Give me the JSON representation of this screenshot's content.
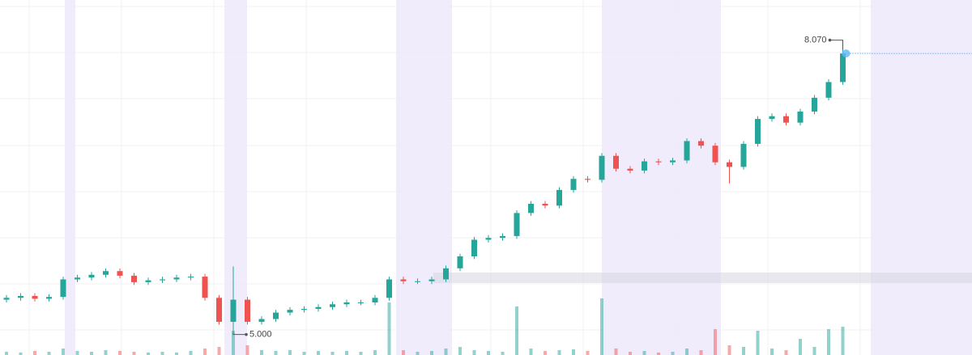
{
  "chart_data": {
    "type": "candlestick",
    "open": [
      5.36,
      5.38,
      5.4,
      5.37,
      5.39,
      5.58,
      5.6,
      5.63,
      5.67,
      5.62,
      5.55,
      5.57,
      5.58,
      5.6,
      5.61,
      5.38,
      5.12,
      5.36,
      5.12,
      5.15,
      5.22,
      5.25,
      5.26,
      5.28,
      5.31,
      5.33,
      5.33,
      5.38,
      5.58,
      5.56,
      5.56,
      5.58,
      5.7,
      5.83,
      6.01,
      6.03,
      6.05,
      6.3,
      6.4,
      6.38,
      6.55,
      6.67,
      6.66,
      6.92,
      6.78,
      6.76,
      6.86,
      6.85,
      6.87,
      7.08,
      7.03,
      6.85,
      6.8,
      7.05,
      7.32,
      7.35,
      7.28,
      7.4,
      7.55,
      7.72
    ],
    "high": [
      5.41,
      5.43,
      5.43,
      5.42,
      5.61,
      5.63,
      5.66,
      5.7,
      5.7,
      5.65,
      5.6,
      5.61,
      5.63,
      5.64,
      5.64,
      5.41,
      5.72,
      5.39,
      5.18,
      5.25,
      5.28,
      5.29,
      5.31,
      5.34,
      5.36,
      5.36,
      5.41,
      5.61,
      5.61,
      5.59,
      5.61,
      5.73,
      5.86,
      6.04,
      6.06,
      6.08,
      6.33,
      6.43,
      6.43,
      6.58,
      6.7,
      6.7,
      6.95,
      6.95,
      6.81,
      6.89,
      6.89,
      6.9,
      7.11,
      7.11,
      7.06,
      6.88,
      7.08,
      7.35,
      7.38,
      7.38,
      7.43,
      7.58,
      7.75,
      8.07
    ],
    "low": [
      5.33,
      5.35,
      5.34,
      5.34,
      5.36,
      5.55,
      5.57,
      5.6,
      5.59,
      5.52,
      5.52,
      5.54,
      5.55,
      5.57,
      5.35,
      5.09,
      5.0,
      5.09,
      5.09,
      5.12,
      5.19,
      5.22,
      5.23,
      5.25,
      5.28,
      5.3,
      5.3,
      5.35,
      5.53,
      5.53,
      5.53,
      5.55,
      5.67,
      5.8,
      5.98,
      6.0,
      6.02,
      6.27,
      6.35,
      6.35,
      6.52,
      6.63,
      6.63,
      6.75,
      6.73,
      6.73,
      6.82,
      6.82,
      6.84,
      7.0,
      6.82,
      6.62,
      6.77,
      7.02,
      7.29,
      7.25,
      7.25,
      7.37,
      7.52,
      7.69
    ],
    "close": [
      5.38,
      5.4,
      5.37,
      5.39,
      5.58,
      5.6,
      5.63,
      5.67,
      5.62,
      5.55,
      5.57,
      5.58,
      5.6,
      5.61,
      5.38,
      5.12,
      5.36,
      5.12,
      5.15,
      5.22,
      5.25,
      5.26,
      5.28,
      5.31,
      5.33,
      5.33,
      5.38,
      5.58,
      5.56,
      5.56,
      5.58,
      5.7,
      5.83,
      6.01,
      6.03,
      6.05,
      6.3,
      6.4,
      6.38,
      6.55,
      6.67,
      6.66,
      6.92,
      6.78,
      6.76,
      6.86,
      6.85,
      6.87,
      7.08,
      7.03,
      6.85,
      6.8,
      7.05,
      7.32,
      7.35,
      7.28,
      7.4,
      7.55,
      7.72,
      8.03
    ],
    "volume": [
      4,
      3,
      5,
      4,
      8,
      5,
      4,
      6,
      5,
      4,
      3,
      4,
      3,
      5,
      8,
      10,
      30,
      12,
      6,
      5,
      6,
      4,
      5,
      4,
      5,
      4,
      6,
      65,
      6,
      4,
      5,
      8,
      10,
      6,
      5,
      4,
      60,
      8,
      5,
      6,
      7,
      5,
      70,
      8,
      4,
      5,
      3,
      4,
      8,
      6,
      32,
      12,
      10,
      30,
      8,
      6,
      20,
      10,
      32,
      35
    ],
    "ylim": [
      4.76,
      8.61
    ],
    "y2lim": [
      0,
      100
    ],
    "up_color": "#26a69a",
    "down_color": "#ef5350",
    "annotations": [
      {
        "index": 59,
        "value": 8.07,
        "label": "8.070",
        "field": "high"
      },
      {
        "index": 16,
        "value": 5.0,
        "label": "5.000",
        "field": "low"
      }
    ]
  }
}
